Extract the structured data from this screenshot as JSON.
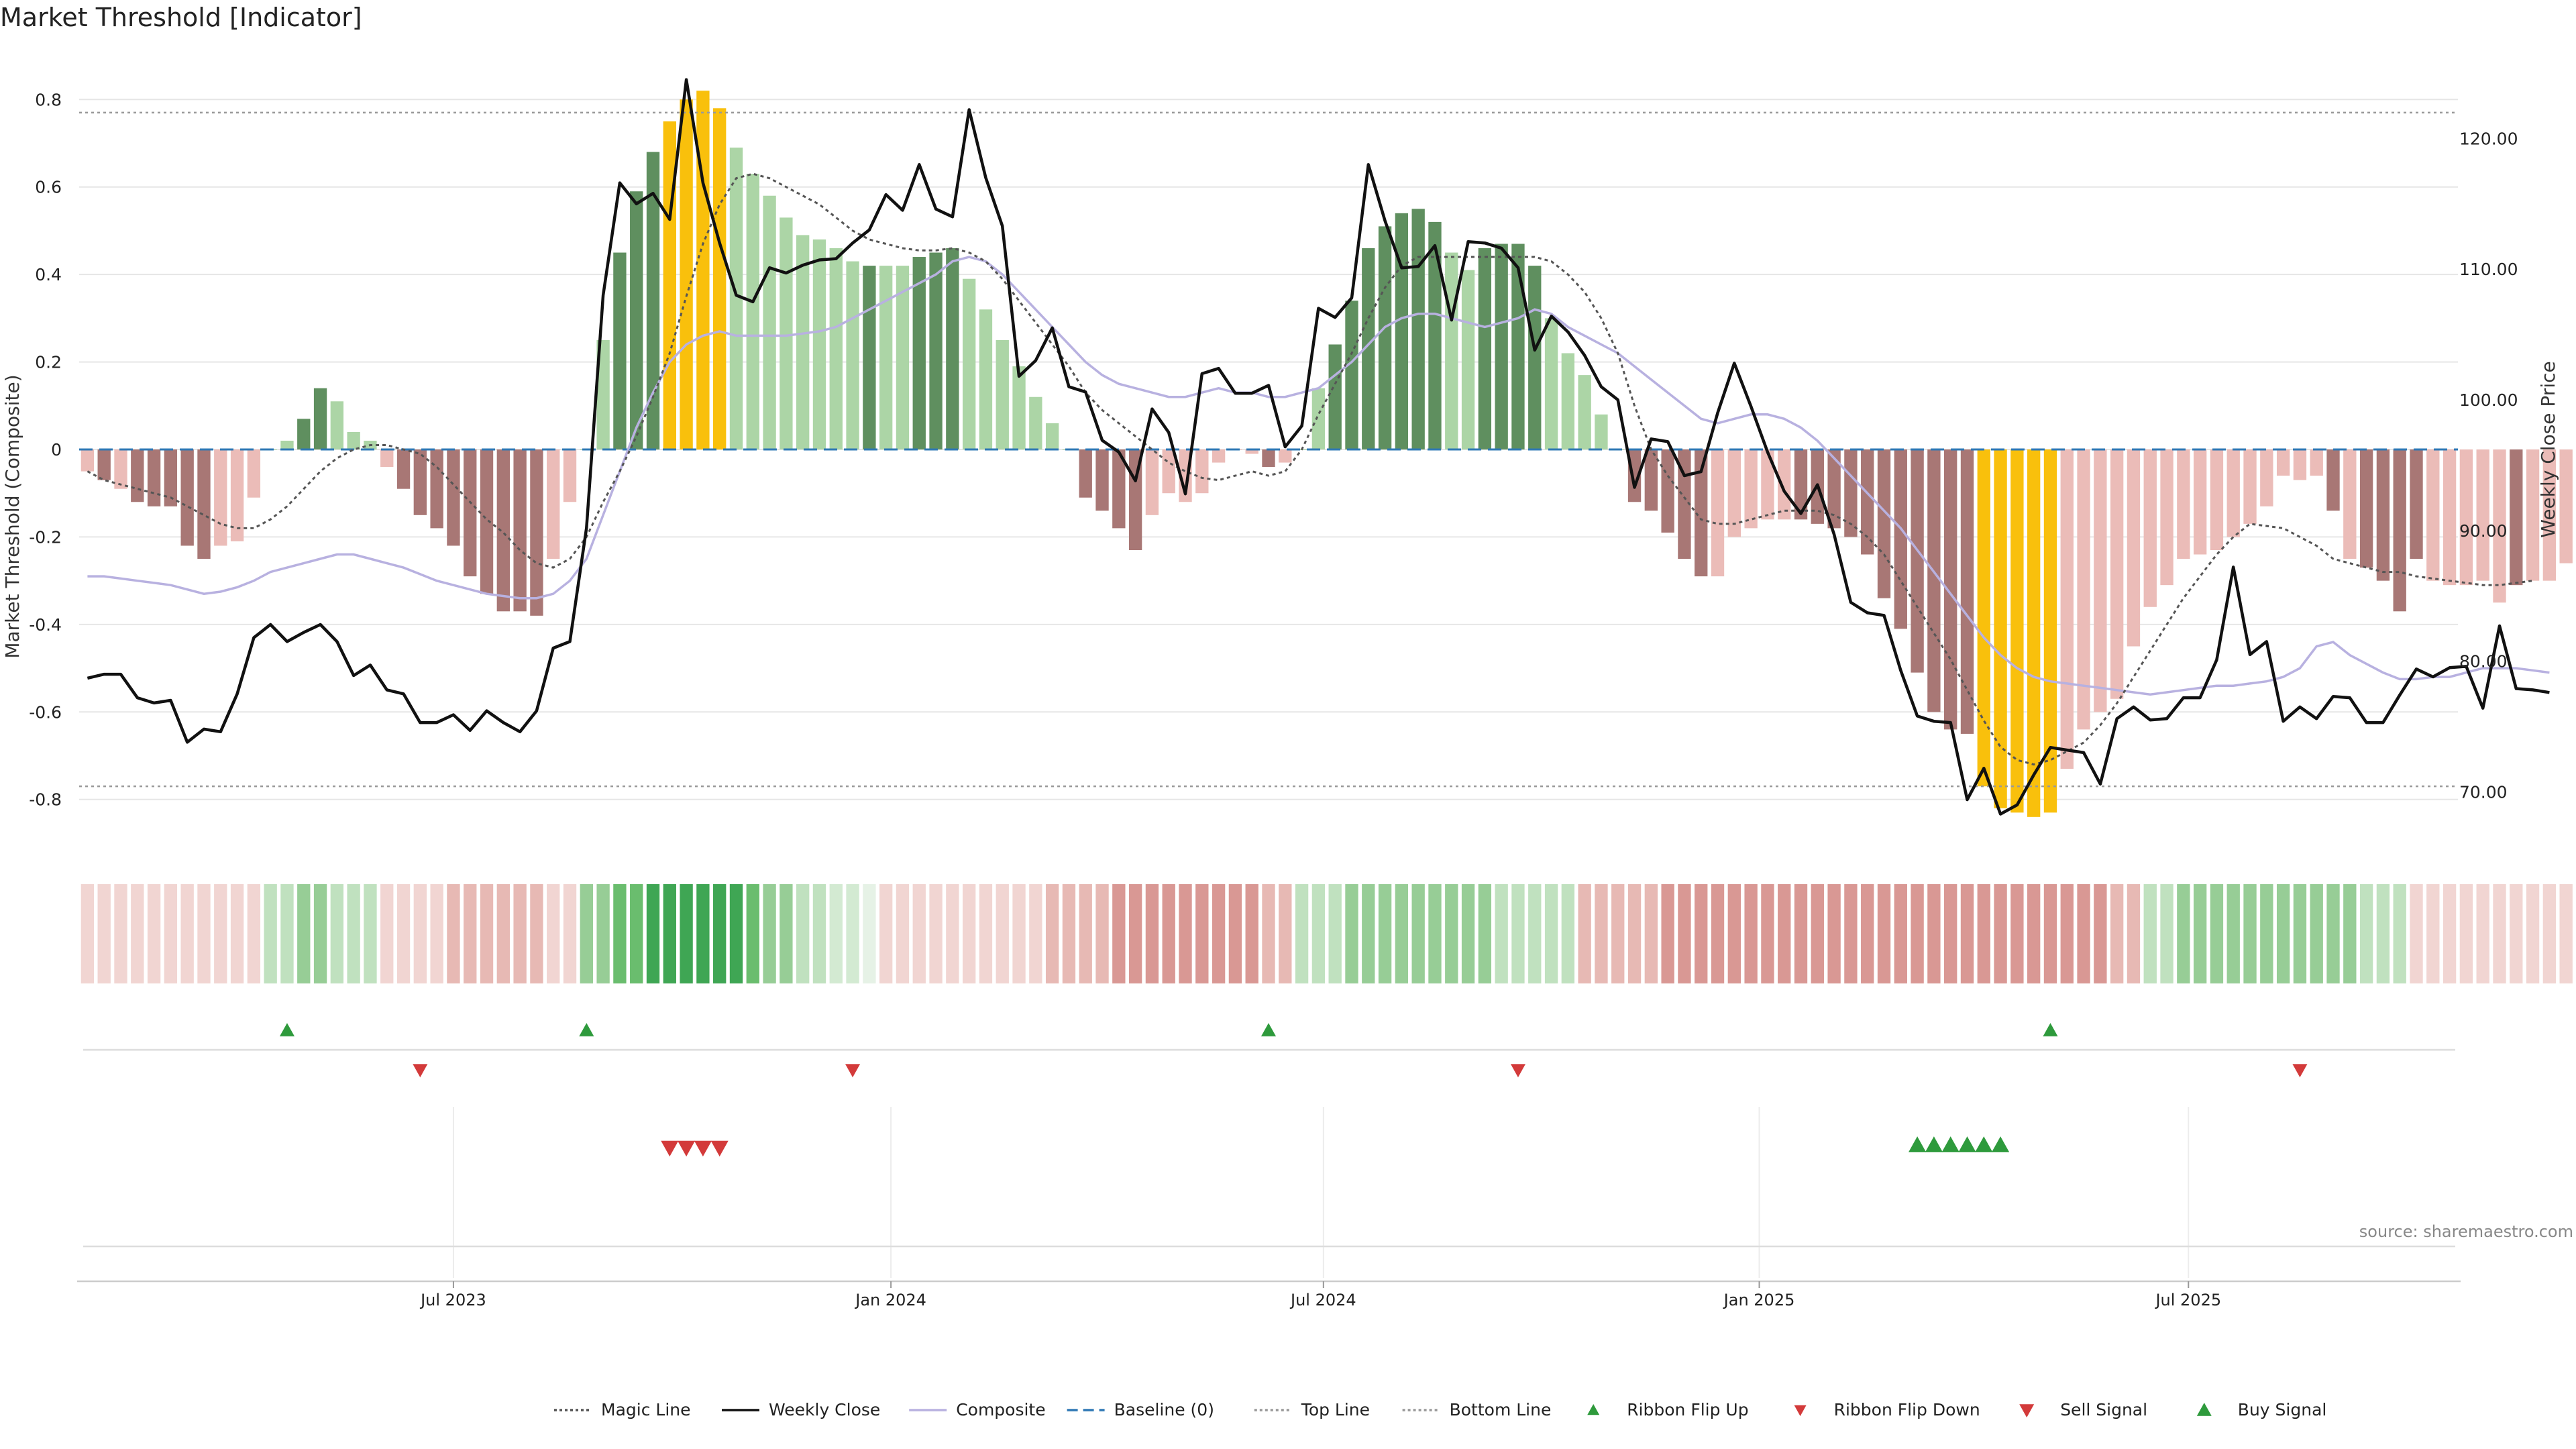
{
  "title": "Market Threshold [Indicator]",
  "source": "source: sharemaestro.com",
  "colors": {
    "bar_strong_pos": "#5f8f5f",
    "bar_weak_pos": "#acd5a6",
    "bar_strong_neg": "#a87775",
    "bar_weak_neg": "#ebbcb8",
    "bar_extreme": "#f9c00c",
    "price_line": "#111111",
    "composite_line": "#b8b1e0",
    "magic_line": "#555555",
    "baseline": "#2f78b5",
    "threshold_line": "#999999",
    "signal_up": "#2e9a3c",
    "signal_down": "#d33a3a"
  },
  "chart_data": {
    "type": "bar",
    "title": "Market Threshold [Indicator]",
    "ylabel": "Market Threshold (Composite)",
    "y2label": "Weekly Close Price",
    "ylim": [
      -0.92,
      0.92
    ],
    "y2lim": [
      65.4,
      127.0
    ],
    "yticks": [
      "0.8",
      "0.6",
      "0.4",
      "0.2",
      "0",
      "-0.2",
      "-0.4",
      "-0.6",
      "-0.8"
    ],
    "y2ticks": [
      "120.00",
      "110.00",
      "100.00",
      "90.00",
      "80.00",
      "70.00"
    ],
    "xticks": [
      {
        "label": "Jul 2023",
        "index": 22
      },
      {
        "label": "Jan 2024",
        "index": 48.3
      },
      {
        "label": "Jul 2024",
        "index": 74.3
      },
      {
        "label": "Jan 2025",
        "index": 100.5
      },
      {
        "label": "Jul 2025",
        "index": 126.3
      }
    ],
    "x_range": [
      -0.5,
      142.5
    ],
    "top_line": 0.77,
    "bottom_line": -0.77,
    "grid": true,
    "legend_position": "bottom-center",
    "composite": [
      -0.05,
      -0.07,
      -0.09,
      -0.12,
      -0.13,
      -0.13,
      -0.22,
      -0.25,
      -0.22,
      -0.21,
      -0.11,
      0.0,
      0.02,
      0.07,
      0.14,
      0.11,
      0.04,
      0.02,
      -0.04,
      -0.09,
      -0.15,
      -0.18,
      -0.22,
      -0.29,
      -0.33,
      -0.37,
      -0.37,
      -0.38,
      -0.25,
      -0.12,
      0.0,
      0.25,
      0.45,
      0.59,
      0.68,
      0.75,
      0.8,
      0.82,
      0.78,
      0.69,
      0.63,
      0.58,
      0.53,
      0.49,
      0.48,
      0.46,
      0.43,
      0.42,
      0.42,
      0.42,
      0.44,
      0.45,
      0.46,
      0.39,
      0.32,
      0.25,
      0.19,
      0.12,
      0.06,
      0.0,
      -0.11,
      -0.14,
      -0.18,
      -0.23,
      -0.15,
      -0.1,
      -0.12,
      -0.1,
      -0.03,
      0.0,
      -0.01,
      -0.04,
      -0.03,
      0.0,
      0.14,
      0.24,
      0.34,
      0.46,
      0.51,
      0.54,
      0.55,
      0.52,
      0.45,
      0.41,
      0.46,
      0.47,
      0.47,
      0.42,
      0.3,
      0.22,
      0.17,
      0.08,
      0.0,
      -0.12,
      -0.14,
      -0.19,
      -0.25,
      -0.29,
      -0.29,
      -0.2,
      -0.18,
      -0.16,
      -0.16,
      -0.16,
      -0.17,
      -0.18,
      -0.2,
      -0.24,
      -0.34,
      -0.41,
      -0.51,
      -0.6,
      -0.64,
      -0.65,
      -0.77,
      -0.82,
      -0.83,
      -0.84,
      -0.83,
      -0.73,
      -0.64,
      -0.6,
      -0.57,
      -0.45,
      -0.36,
      -0.31,
      -0.25,
      -0.24,
      -0.23,
      -0.2,
      -0.17,
      -0.13,
      -0.06,
      -0.07,
      -0.06,
      -0.14,
      -0.25,
      -0.27,
      -0.3,
      -0.37,
      -0.25,
      -0.3,
      -0.31,
      -0.31,
      -0.3,
      -0.35,
      -0.31,
      -0.3,
      -0.3,
      -0.26
    ],
    "bar_class": [
      "wn",
      "sn",
      "wn",
      "sn",
      "sn",
      "sn",
      "sn",
      "sn",
      "wn",
      "wn",
      "wn",
      "wp",
      "wp",
      "sp",
      "sp",
      "wp",
      "wp",
      "wp",
      "wn",
      "sn",
      "sn",
      "sn",
      "sn",
      "sn",
      "sn",
      "sn",
      "sn",
      "sn",
      "wn",
      "wn",
      "wp",
      "wp",
      "sp",
      "sp",
      "sp",
      "x",
      "x",
      "x",
      "x",
      "wp",
      "wp",
      "wp",
      "wp",
      "wp",
      "wp",
      "wp",
      "wp",
      "sp",
      "wp",
      "wp",
      "sp",
      "sp",
      "sp",
      "wp",
      "wp",
      "wp",
      "wp",
      "wp",
      "wp",
      "wp",
      "sn",
      "sn",
      "sn",
      "sn",
      "wn",
      "wn",
      "wn",
      "wn",
      "wn",
      "wn",
      "wn",
      "sn",
      "wn",
      "wp",
      "wp",
      "sp",
      "sp",
      "sp",
      "sp",
      "sp",
      "sp",
      "sp",
      "wp",
      "wp",
      "sp",
      "sp",
      "sp",
      "sp",
      "wp",
      "wp",
      "wp",
      "wp",
      "wp",
      "sn",
      "sn",
      "sn",
      "sn",
      "sn",
      "wn",
      "wn",
      "wn",
      "wn",
      "wn",
      "sn",
      "sn",
      "sn",
      "sn",
      "sn",
      "sn",
      "sn",
      "sn",
      "sn",
      "sn",
      "sn",
      "x",
      "x",
      "x",
      "x",
      "x",
      "wn",
      "wn",
      "wn",
      "wn",
      "wn",
      "wn",
      "wn",
      "wn",
      "wn",
      "wn",
      "wn",
      "wn",
      "wn",
      "wn",
      "wn",
      "wn",
      "sn",
      "wn",
      "sn",
      "sn",
      "sn",
      "sn",
      "wn",
      "wn",
      "wn",
      "wn",
      "wn",
      "sn",
      "wn",
      "wn",
      "wn",
      "wn"
    ],
    "composite_smooth": [
      -0.29,
      -0.29,
      -0.295,
      -0.3,
      -0.305,
      -0.31,
      -0.32,
      -0.33,
      -0.325,
      -0.315,
      -0.3,
      -0.28,
      -0.27,
      -0.26,
      -0.25,
      -0.24,
      -0.24,
      -0.25,
      -0.26,
      -0.27,
      -0.285,
      -0.3,
      -0.31,
      -0.32,
      -0.33,
      -0.335,
      -0.34,
      -0.34,
      -0.33,
      -0.3,
      -0.25,
      -0.15,
      -0.05,
      0.05,
      0.13,
      0.2,
      0.24,
      0.26,
      0.27,
      0.26,
      0.26,
      0.26,
      0.26,
      0.265,
      0.27,
      0.28,
      0.3,
      0.32,
      0.34,
      0.36,
      0.38,
      0.4,
      0.43,
      0.44,
      0.43,
      0.4,
      0.36,
      0.32,
      0.28,
      0.24,
      0.2,
      0.17,
      0.15,
      0.14,
      0.13,
      0.12,
      0.12,
      0.13,
      0.14,
      0.13,
      0.13,
      0.12,
      0.12,
      0.13,
      0.14,
      0.17,
      0.2,
      0.24,
      0.28,
      0.3,
      0.31,
      0.31,
      0.3,
      0.29,
      0.28,
      0.29,
      0.3,
      0.32,
      0.31,
      0.28,
      0.26,
      0.24,
      0.22,
      0.19,
      0.16,
      0.13,
      0.1,
      0.07,
      0.06,
      0.07,
      0.08,
      0.08,
      0.07,
      0.05,
      0.02,
      -0.02,
      -0.06,
      -0.1,
      -0.14,
      -0.18,
      -0.23,
      -0.28,
      -0.33,
      -0.38,
      -0.43,
      -0.47,
      -0.5,
      -0.52,
      -0.53,
      -0.535,
      -0.54,
      -0.545,
      -0.55,
      -0.555,
      -0.56,
      -0.555,
      -0.55,
      -0.545,
      -0.54,
      -0.54,
      -0.535,
      -0.53,
      -0.52,
      -0.5,
      -0.45,
      -0.44,
      -0.47,
      -0.49,
      -0.51,
      -0.525,
      -0.525,
      -0.52,
      -0.52,
      -0.51,
      -0.5,
      -0.5,
      -0.5,
      -0.505,
      -0.51
    ],
    "magic_line": [
      -0.05,
      -0.07,
      -0.08,
      -0.09,
      -0.1,
      -0.11,
      -0.13,
      -0.15,
      -0.17,
      -0.18,
      -0.18,
      -0.16,
      -0.13,
      -0.09,
      -0.05,
      -0.02,
      0.0,
      0.01,
      0.01,
      0.0,
      -0.01,
      -0.04,
      -0.08,
      -0.12,
      -0.16,
      -0.19,
      -0.23,
      -0.26,
      -0.27,
      -0.25,
      -0.2,
      -0.12,
      -0.05,
      0.03,
      0.12,
      0.22,
      0.35,
      0.47,
      0.56,
      0.62,
      0.63,
      0.62,
      0.6,
      0.58,
      0.56,
      0.53,
      0.5,
      0.48,
      0.47,
      0.46,
      0.455,
      0.455,
      0.46,
      0.45,
      0.43,
      0.39,
      0.34,
      0.29,
      0.24,
      0.19,
      0.13,
      0.09,
      0.06,
      0.03,
      0.0,
      -0.03,
      -0.05,
      -0.065,
      -0.07,
      -0.06,
      -0.05,
      -0.06,
      -0.05,
      0.0,
      0.08,
      0.15,
      0.22,
      0.3,
      0.37,
      0.42,
      0.44,
      0.44,
      0.44,
      0.44,
      0.44,
      0.44,
      0.44,
      0.44,
      0.43,
      0.4,
      0.36,
      0.3,
      0.22,
      0.1,
      0.0,
      -0.06,
      -0.11,
      -0.16,
      -0.17,
      -0.17,
      -0.16,
      -0.15,
      -0.14,
      -0.14,
      -0.14,
      -0.15,
      -0.17,
      -0.2,
      -0.24,
      -0.3,
      -0.36,
      -0.42,
      -0.48,
      -0.55,
      -0.62,
      -0.68,
      -0.71,
      -0.72,
      -0.71,
      -0.69,
      -0.67,
      -0.63,
      -0.58,
      -0.52,
      -0.46,
      -0.4,
      -0.34,
      -0.29,
      -0.24,
      -0.2,
      -0.17,
      -0.175,
      -0.18,
      -0.2,
      -0.22,
      -0.25,
      -0.26,
      -0.27,
      -0.28,
      -0.28,
      -0.29,
      -0.295,
      -0.3,
      -0.305,
      -0.31,
      -0.31,
      -0.305,
      -0.3
    ],
    "weekly_close": [
      78.7,
      79.0,
      79.0,
      77.2,
      76.8,
      77.0,
      73.8,
      74.8,
      74.6,
      77.5,
      81.8,
      82.8,
      81.5,
      82.2,
      82.8,
      81.5,
      78.9,
      79.7,
      77.8,
      77.5,
      75.3,
      75.3,
      75.9,
      74.7,
      76.2,
      75.3,
      74.6,
      76.2,
      81.0,
      81.5,
      90.2,
      108.0,
      116.6,
      115.0,
      115.8,
      113.8,
      124.5,
      116.6,
      112.0,
      108.0,
      107.5,
      110.1,
      109.7,
      110.3,
      110.7,
      110.8,
      112.0,
      113.0,
      115.7,
      114.5,
      118.0,
      114.6,
      114.0,
      122.2,
      117.0,
      113.3,
      101.8,
      103.0,
      105.5,
      101.0,
      100.6,
      96.9,
      96.0,
      93.8,
      99.3,
      97.5,
      92.8,
      102.0,
      102.4,
      100.5,
      100.5,
      101.1,
      96.4,
      98.0,
      107.0,
      106.3,
      107.8,
      118.0,
      113.7,
      110.1,
      110.2,
      111.8,
      106.1,
      112.1,
      112.0,
      111.6,
      110.1,
      103.8,
      106.4,
      105.2,
      103.4,
      101.0,
      100.0,
      93.3,
      97.0,
      96.8,
      94.2,
      94.5,
      99.0,
      102.8,
      99.5,
      96.0,
      93.0,
      91.3,
      93.5,
      89.7,
      84.5,
      83.7,
      83.5,
      79.3,
      75.8,
      75.4,
      75.3,
      69.4,
      71.8,
      68.3,
      69.0,
      71.3,
      73.4,
      73.2,
      73.0,
      70.6,
      75.6,
      76.5,
      75.5,
      75.6,
      77.2,
      77.2,
      80.1,
      87.2,
      80.5,
      81.5,
      75.4,
      76.5,
      75.6,
      77.3,
      77.2,
      75.3,
      75.3,
      77.4,
      79.4,
      78.8,
      79.5,
      79.6,
      76.4,
      82.7,
      77.9,
      77.8,
      77.6
    ],
    "ribbon": [
      1,
      1,
      1,
      1,
      1,
      1,
      1,
      1,
      1,
      1,
      1,
      -3,
      -3,
      -4,
      -4,
      -3,
      -3,
      -3,
      1,
      1,
      1,
      1,
      2,
      2,
      2,
      2,
      2,
      2,
      1,
      1,
      -4,
      -4,
      -5,
      -5,
      -6,
      -6,
      -6,
      -6,
      -6,
      -6,
      -5,
      -4,
      -4,
      -3,
      -3,
      -2,
      -2,
      -1,
      1,
      1,
      1,
      1,
      1,
      1,
      1,
      1,
      1,
      1,
      2,
      2,
      2,
      2,
      3,
      3,
      3,
      3,
      3,
      3,
      3,
      3,
      3,
      2,
      2,
      -3,
      -3,
      -3,
      -4,
      -4,
      -4,
      -4,
      -4,
      -4,
      -4,
      -4,
      -4,
      -3,
      -3,
      -3,
      -3,
      -3,
      2,
      2,
      2,
      2,
      2,
      3,
      3,
      3,
      3,
      3,
      3,
      3,
      3,
      3,
      3,
      3,
      3,
      3,
      3,
      3,
      3,
      3,
      3,
      3,
      3,
      3,
      3,
      3,
      3,
      3,
      3,
      3,
      2,
      2,
      -3,
      -3,
      -4,
      -4,
      -4,
      -4,
      -4,
      -4,
      -4,
      -4,
      -4,
      -4,
      -4,
      -3,
      -3,
      -3,
      1,
      1,
      1,
      1,
      1,
      1,
      1,
      1,
      1,
      1,
      1,
      1
    ],
    "ribbon_flip_up": [
      12,
      30,
      71,
      118
    ],
    "ribbon_flip_down": [
      20,
      46,
      86,
      133
    ],
    "sell_signal": [
      35,
      36,
      37,
      38
    ],
    "buy_signal": [
      110,
      111,
      112,
      113,
      114,
      115
    ],
    "series": [
      {
        "name": "Magic Line",
        "style": "dotted"
      },
      {
        "name": "Weekly Close",
        "style": "solid"
      },
      {
        "name": "Composite",
        "style": "solid"
      },
      {
        "name": "Baseline (0)",
        "style": "dashed"
      },
      {
        "name": "Top Line",
        "style": "dotted"
      },
      {
        "name": "Bottom Line",
        "style": "dotted"
      },
      {
        "name": "Ribbon Flip Up",
        "style": "marker-up"
      },
      {
        "name": "Ribbon Flip Down",
        "style": "marker-down"
      },
      {
        "name": "Sell Signal",
        "style": "marker-down-large"
      },
      {
        "name": "Buy Signal",
        "style": "marker-up-large"
      }
    ]
  }
}
